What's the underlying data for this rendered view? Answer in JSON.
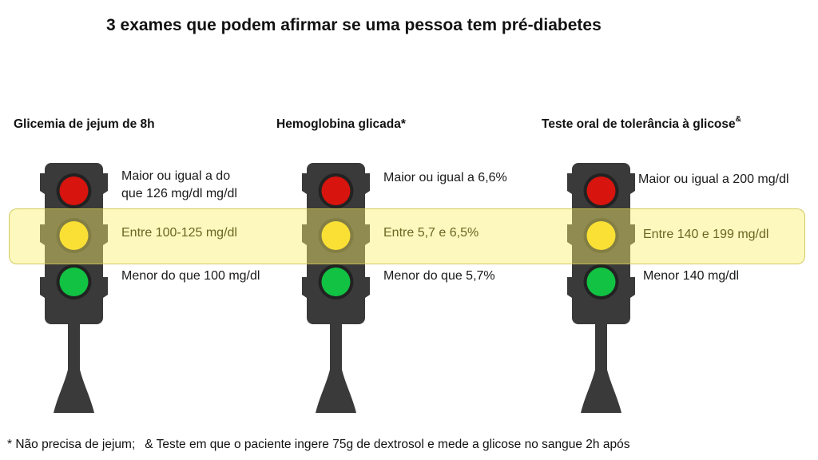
{
  "title": "3 exames que podem afirmar se uma pessoa tem pré-diabetes",
  "columns": [
    {
      "heading": "Glicemia de jejum de 8h",
      "heading_mark": "",
      "red": [
        "Maior ou igual a do",
        "que 126 mg/dl mg/dl"
      ],
      "yellow": "Entre 100-125 mg/dl",
      "green": "Menor do que 100 mg/dl"
    },
    {
      "heading": "Hemoglobina glicada*",
      "heading_mark": "",
      "red": [
        "Maior ou igual a 6,6%"
      ],
      "yellow": "Entre 5,7 e 6,5%",
      "green": "Menor do que 5,7%"
    },
    {
      "heading": "Teste oral de tolerância à glicose",
      "heading_mark": "&",
      "red": [
        "Maior ou igual a 200 mg/dl"
      ],
      "yellow": "Entre 140 e 199 mg/dl",
      "green": "Menor 140 mg/dl"
    }
  ],
  "footnotes": [
    "* Não precisa de jejum;",
    "& Teste em que o paciente ingere 75g de dextrosol e mede a glicose no sangue 2h após"
  ],
  "colors": {
    "red_light": "#d7140e",
    "yellow_light": "#fcd307",
    "green_light": "#11c243",
    "housing": "#3a3a3a",
    "highlight": "#f8f06e"
  },
  "icons": [
    "traffic-light-icon"
  ]
}
